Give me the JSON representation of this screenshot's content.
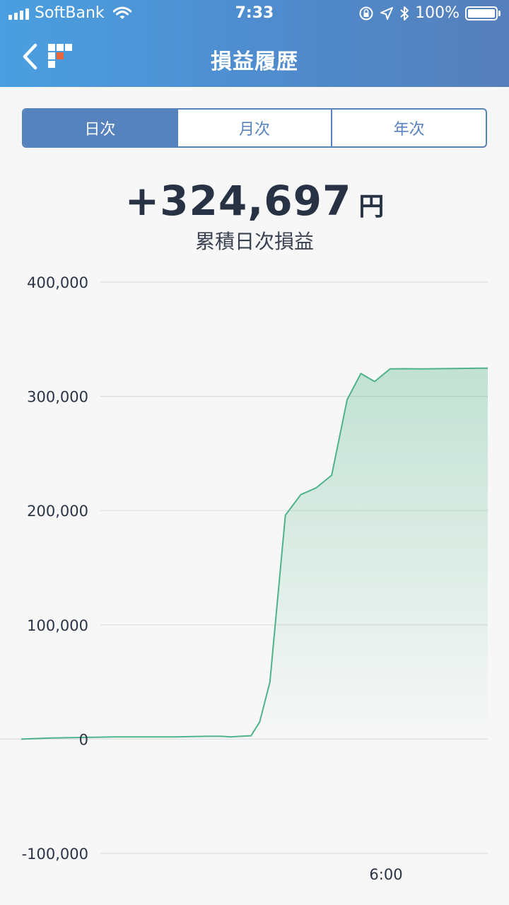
{
  "status_bar": {
    "carrier": "SoftBank",
    "time": "7:33",
    "battery": "100%"
  },
  "nav": {
    "title": "損益履歴"
  },
  "tabs": [
    {
      "label": "日次",
      "active": true
    },
    {
      "label": "月次",
      "active": false
    },
    {
      "label": "年次",
      "active": false
    }
  ],
  "summary": {
    "value": "+324,697",
    "unit": "円",
    "caption": "累積日次損益"
  },
  "colors": {
    "header": "#4f8bcd",
    "accent": "#5682bd",
    "line": "#4fb38a"
  },
  "chart_data": {
    "type": "area",
    "ylim": [
      -100000,
      400000
    ],
    "y_ticks": [
      "400,000",
      "300,000",
      "200,000",
      "100,000",
      "0",
      "-100,000"
    ],
    "x_ticks": [
      "6:00"
    ],
    "series": [
      {
        "values": [
          0,
          1000,
          1500,
          2000,
          2000,
          2000,
          2500,
          2500,
          2000,
          2500,
          3000,
          15000,
          50000,
          196000,
          214000,
          220000,
          231000,
          297000,
          320000,
          313000,
          324000,
          324200,
          324000,
          324200,
          324400,
          324500,
          324600,
          324697
        ]
      }
    ]
  }
}
